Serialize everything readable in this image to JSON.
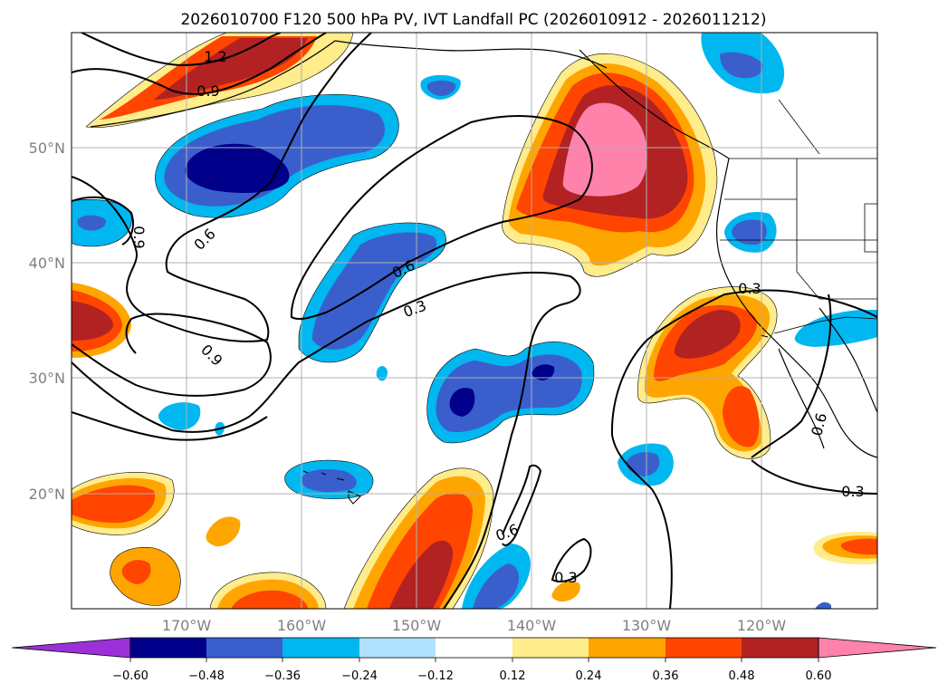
{
  "title": "2026010700 F120 500 hPa PV, IVT Landfall PC (2026010912 - 2026011212)",
  "colors": {
    "n060": "#9b30d8",
    "n048": "#00008b",
    "n036": "#3a5fcd",
    "n024": "#00b7f0",
    "n012": "#b0e2ff",
    "zero": "#ffffff",
    "p012": "#ffec8b",
    "p024": "#ffa500",
    "p036": "#ff4500",
    "p048": "#b22222",
    "p060": "#ff82ab"
  },
  "map": {
    "lon_ticks": [
      "170°W",
      "160°W",
      "150°W",
      "140°W",
      "130°W",
      "120°W"
    ],
    "lat_ticks": [
      "50°N",
      "40°N",
      "30°N",
      "20°N"
    ]
  },
  "colorbar": {
    "ticks": [
      "−0.60",
      "−0.48",
      "−0.36",
      "−0.24",
      "−0.12",
      "0.12",
      "0.24",
      "0.36",
      "0.48",
      "0.60"
    ]
  },
  "contour_labels": [
    {
      "text": "1.2"
    },
    {
      "text": "0.9"
    },
    {
      "text": "0.9"
    },
    {
      "text": "0.9"
    },
    {
      "text": "0.6"
    },
    {
      "text": "0.6"
    },
    {
      "text": "0.3"
    },
    {
      "text": "0.3"
    },
    {
      "text": "0.6"
    },
    {
      "text": "0.3"
    },
    {
      "text": "0.6"
    },
    {
      "text": "0.3"
    }
  ]
}
